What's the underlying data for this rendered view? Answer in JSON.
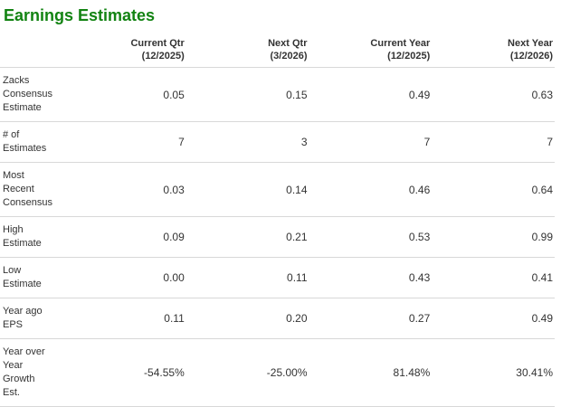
{
  "colors": {
    "title_green": "#128312",
    "text": "#333333",
    "divider": "#d8d8d8",
    "background": "#ffffff"
  },
  "header": {
    "title": "Earnings Estimates"
  },
  "table": {
    "columns": [
      {
        "title": "Current Qtr",
        "period": "(12/2025)"
      },
      {
        "title": "Next Qtr",
        "period": "(3/2026)"
      },
      {
        "title": "Current Year",
        "period": "(12/2025)"
      },
      {
        "title": "Next Year",
        "period": "(12/2026)"
      }
    ],
    "rows": [
      {
        "label": "Zacks\nConsensus\nEstimate",
        "values": [
          "0.05",
          "0.15",
          "0.49",
          "0.63"
        ]
      },
      {
        "label": "# of\nEstimates",
        "values": [
          "7",
          "3",
          "7",
          "7"
        ]
      },
      {
        "label": "Most\nRecent\nConsensus",
        "values": [
          "0.03",
          "0.14",
          "0.46",
          "0.64"
        ]
      },
      {
        "label": "High\nEstimate",
        "values": [
          "0.09",
          "0.21",
          "0.53",
          "0.99"
        ]
      },
      {
        "label": "Low\nEstimate",
        "values": [
          "0.00",
          "0.11",
          "0.43",
          "0.41"
        ]
      },
      {
        "label": "Year ago\nEPS",
        "values": [
          "0.11",
          "0.20",
          "0.27",
          "0.49"
        ]
      },
      {
        "label": "Year over\nYear\nGrowth\nEst.",
        "values": [
          "-54.55%",
          "-25.00%",
          "81.48%",
          "30.41%"
        ]
      }
    ]
  },
  "chart_data": {
    "type": "table",
    "title": "Earnings Estimates",
    "categories": [
      "Current Qtr (12/2025)",
      "Next Qtr (3/2026)",
      "Current Year (12/2025)",
      "Next Year (12/2026)"
    ],
    "series": [
      {
        "name": "Zacks Consensus Estimate",
        "values": [
          0.05,
          0.15,
          0.49,
          0.63
        ]
      },
      {
        "name": "# of Estimates",
        "values": [
          7,
          3,
          7,
          7
        ]
      },
      {
        "name": "Most Recent Consensus",
        "values": [
          0.03,
          0.14,
          0.46,
          0.64
        ]
      },
      {
        "name": "High Estimate",
        "values": [
          0.09,
          0.21,
          0.53,
          0.99
        ]
      },
      {
        "name": "Low Estimate",
        "values": [
          0.0,
          0.11,
          0.43,
          0.41
        ]
      },
      {
        "name": "Year ago EPS",
        "values": [
          0.11,
          0.2,
          0.27,
          0.49
        ]
      },
      {
        "name": "Year over Year Growth Est. (%)",
        "values": [
          -54.55,
          -25.0,
          81.48,
          30.41
        ]
      }
    ]
  }
}
